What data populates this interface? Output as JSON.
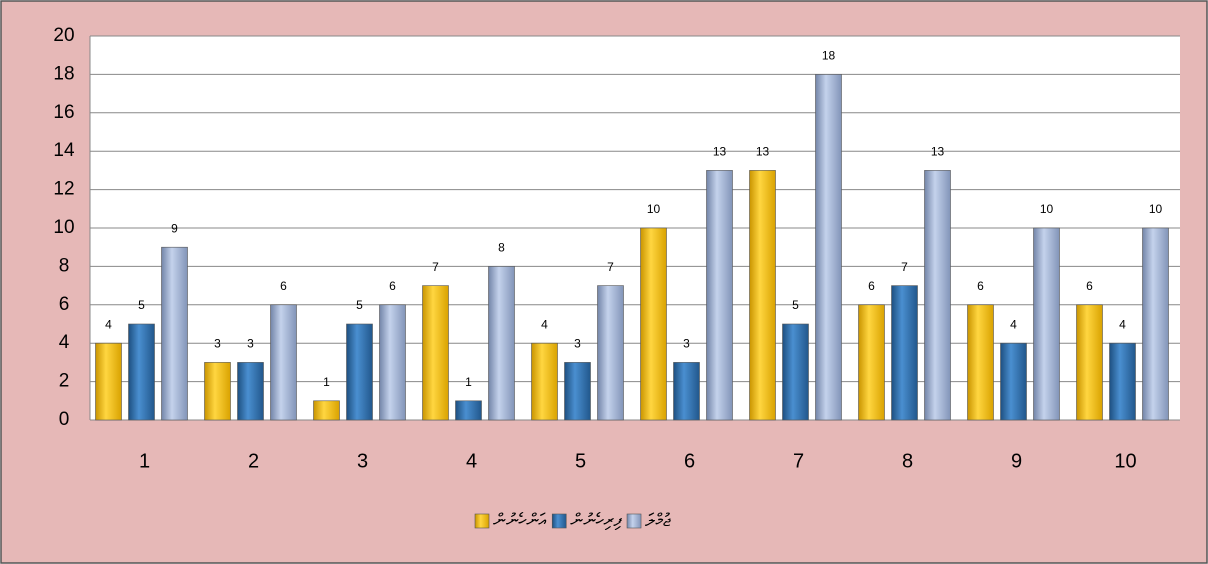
{
  "chart_data": {
    "type": "bar",
    "categories": [
      "1",
      "2",
      "3",
      "4",
      "5",
      "6",
      "7",
      "8",
      "9",
      "10"
    ],
    "series": [
      {
        "name": "އަންހެނުން",
        "color": "#ffc000",
        "values": [
          4,
          3,
          1,
          7,
          4,
          10,
          13,
          6,
          6,
          6
        ]
      },
      {
        "name": "ފިރިހެނުން",
        "color": "#2e75b6",
        "values": [
          5,
          3,
          5,
          1,
          3,
          3,
          5,
          7,
          4,
          4
        ]
      },
      {
        "name": "ޖުމްލަ",
        "color": "#9fb3d9",
        "values": [
          9,
          6,
          6,
          8,
          7,
          13,
          18,
          13,
          10,
          10
        ]
      }
    ],
    "ylim": [
      0,
      20
    ],
    "yticks": [
      0,
      2,
      4,
      6,
      8,
      10,
      12,
      14,
      16,
      18,
      20
    ],
    "grid": true,
    "legend": "bottom"
  }
}
